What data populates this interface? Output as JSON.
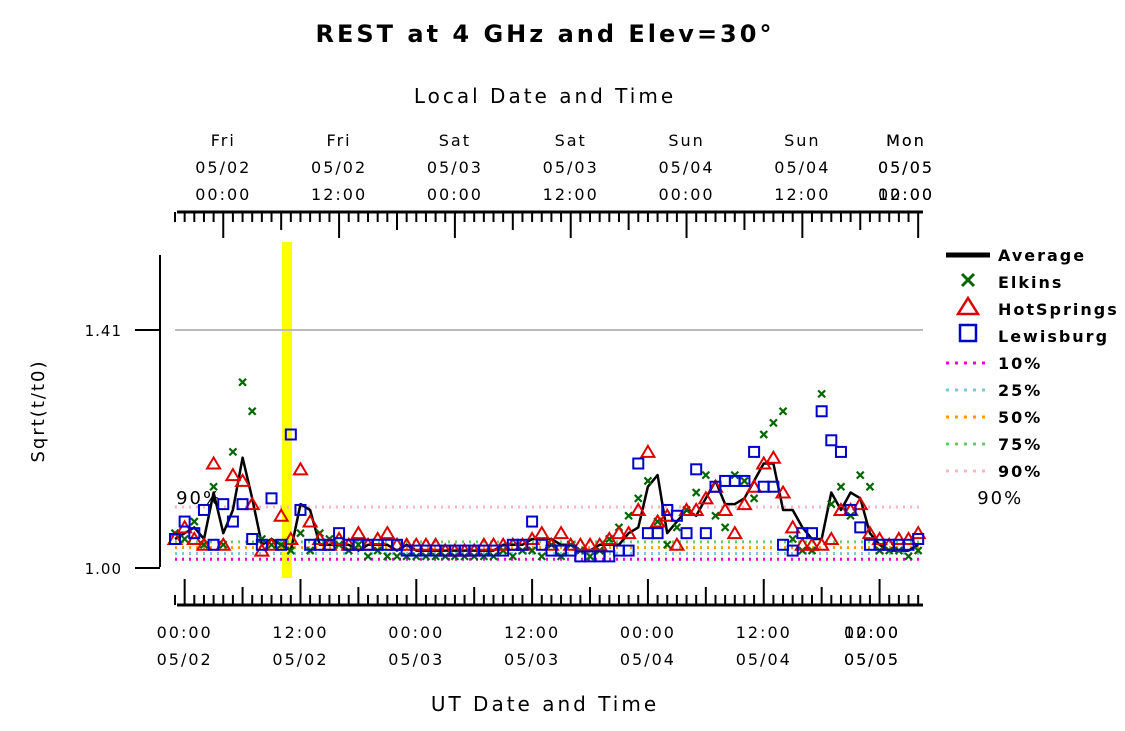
{
  "chart_data": {
    "type": "scatter",
    "title": "REST at 4 GHz and Elev=30°",
    "top_xlabel": "Local Date and Time",
    "xlabel": "UT Date and Time",
    "ylabel": "Sqrt(t/t0)",
    "x_unit": "hours since 05/02 00:00 UT",
    "xlim": [
      -1,
      76.5
    ],
    "ylim": [
      0.99,
      1.53
    ],
    "y_reference_line": 1.41,
    "y_ticks": [
      {
        "value": 1.0,
        "label": "1.00"
      },
      {
        "value": 1.41,
        "label": "1.41"
      }
    ],
    "bottom_ticks": [
      {
        "x": 0,
        "line1": "00:00",
        "line2": "05/02"
      },
      {
        "x": 12,
        "line1": "12:00",
        "line2": "05/02"
      },
      {
        "x": 24,
        "line1": "00:00",
        "line2": "05/03"
      },
      {
        "x": 36,
        "line1": "12:00",
        "line2": "05/03"
      },
      {
        "x": 48,
        "line1": "00:00",
        "line2": "05/04"
      },
      {
        "x": 60,
        "line1": "12:00",
        "line2": "05/04"
      },
      {
        "x": 72,
        "line1": "00:00",
        "line2": "05/05"
      },
      {
        "x": 84,
        "line1": "12:00",
        "line2": "05/05"
      }
    ],
    "top_ticks": [
      {
        "x": 4,
        "line1": "Fri",
        "line2": "05/02",
        "line3": "00:00"
      },
      {
        "x": 16,
        "line1": "Fri",
        "line2": "05/02",
        "line3": "12:00"
      },
      {
        "x": 28,
        "line1": "Sat",
        "line2": "05/03",
        "line3": "00:00"
      },
      {
        "x": 40,
        "line1": "Sat",
        "line2": "05/03",
        "line3": "12:00"
      },
      {
        "x": 52,
        "line1": "Sun",
        "line2": "05/04",
        "line3": "00:00"
      },
      {
        "x": 64,
        "line1": "Sun",
        "line2": "05/04",
        "line3": "12:00"
      },
      {
        "x": 76,
        "line1": "Mon",
        "line2": "05/05",
        "line3": "00:00"
      },
      {
        "x": 88,
        "line1": "Mon",
        "line2": "05/05",
        "line3": "12:00"
      }
    ],
    "highlight_band": {
      "x": 10.6,
      "color": "#ffff00"
    },
    "percentile_lines": [
      {
        "name": "10%",
        "value": 1.015,
        "color": "#e000e0"
      },
      {
        "name": "25%",
        "value": 1.025,
        "color": "#7cc8d8"
      },
      {
        "name": "50%",
        "value": 1.035,
        "color": "#ff9900"
      },
      {
        "name": "75%",
        "value": 1.045,
        "color": "#66cc66"
      },
      {
        "name": "90%",
        "value": 1.105,
        "color": "#ffb6c1"
      }
    ],
    "percentile_annotations": [
      {
        "text": "90%",
        "x": 1.5,
        "y": 1.11,
        "color": "#ffb6c1"
      },
      {
        "text": "90%",
        "x": 84.5,
        "y": 1.11,
        "color": "#ffb6c1"
      }
    ],
    "legend": [
      {
        "name": "Average",
        "marker": "line",
        "color": "#000000"
      },
      {
        "name": "Elkins",
        "marker": "x",
        "color": "#006600"
      },
      {
        "name": "HotSprings",
        "marker": "triangle",
        "color": "#dd0000"
      },
      {
        "name": "Lewisburg",
        "marker": "square",
        "color": "#0000cc"
      },
      {
        "name": "10%",
        "marker": "dots",
        "color": "#e000e0"
      },
      {
        "name": "25%",
        "marker": "dots",
        "color": "#7cc8d8"
      },
      {
        "name": "50%",
        "marker": "dots",
        "color": "#ff9900"
      },
      {
        "name": "75%",
        "marker": "dots",
        "color": "#66cc66"
      },
      {
        "name": "90%",
        "marker": "dots",
        "color": "#ffb6c1"
      }
    ],
    "series": [
      {
        "name": "Average",
        "color": "#000000",
        "marker": "line",
        "x": [
          -1,
          0,
          1,
          2,
          3,
          4,
          5,
          6,
          7,
          8,
          9,
          10,
          11,
          12,
          13,
          14,
          15,
          16,
          17,
          18,
          19,
          20,
          21,
          22,
          23,
          24,
          25,
          26,
          27,
          28,
          29,
          30,
          31,
          32,
          33,
          34,
          35,
          36,
          37,
          38,
          39,
          40,
          41,
          42,
          43,
          44,
          45,
          46,
          47,
          48,
          49,
          50,
          51,
          52,
          53,
          54,
          55,
          56,
          57,
          58,
          59,
          60,
          61,
          62,
          63,
          64,
          65,
          66,
          67,
          68,
          69,
          70,
          71,
          72,
          73,
          74,
          75,
          76
        ],
        "y": [
          1.05,
          1.06,
          1.07,
          1.05,
          1.13,
          1.06,
          1.1,
          1.19,
          1.12,
          1.04,
          1.05,
          1.04,
          1.03,
          1.11,
          1.1,
          1.04,
          1.04,
          1.04,
          1.04,
          1.03,
          1.04,
          1.04,
          1.04,
          1.03,
          1.04,
          1.03,
          1.03,
          1.03,
          1.03,
          1.03,
          1.03,
          1.03,
          1.03,
          1.03,
          1.04,
          1.04,
          1.04,
          1.05,
          1.05,
          1.05,
          1.04,
          1.04,
          1.03,
          1.03,
          1.04,
          1.04,
          1.04,
          1.06,
          1.07,
          1.14,
          1.16,
          1.06,
          1.08,
          1.1,
          1.09,
          1.12,
          1.15,
          1.11,
          1.11,
          1.12,
          1.15,
          1.18,
          1.18,
          1.1,
          1.1,
          1.07,
          1.05,
          1.05,
          1.13,
          1.1,
          1.13,
          1.12,
          1.06,
          1.04,
          1.03,
          1.03,
          1.03,
          1.04
        ]
      },
      {
        "name": "Elkins",
        "color": "#006600",
        "marker": "x",
        "x": [
          -1,
          0,
          1,
          2,
          3,
          4,
          5,
          6,
          7,
          8,
          9,
          10,
          11,
          12,
          13,
          14,
          15,
          16,
          17,
          18,
          19,
          20,
          21,
          22,
          23,
          24,
          25,
          26,
          27,
          28,
          29,
          30,
          31,
          32,
          33,
          34,
          35,
          36,
          37,
          38,
          39,
          40,
          41,
          42,
          43,
          44,
          45,
          46,
          47,
          48,
          49,
          50,
          51,
          52,
          53,
          54,
          55,
          56,
          57,
          58,
          59,
          60,
          61,
          62,
          63,
          64,
          65,
          66,
          67,
          68,
          69,
          70,
          71,
          72,
          73,
          74,
          75,
          76
        ],
        "y": [
          1.06,
          1.05,
          1.08,
          1.04,
          1.14,
          1.04,
          1.2,
          1.32,
          1.27,
          1.05,
          1.04,
          1.04,
          1.03,
          1.06,
          1.03,
          1.06,
          1.05,
          1.04,
          1.03,
          1.04,
          1.02,
          1.03,
          1.02,
          1.02,
          1.02,
          1.02,
          1.02,
          1.02,
          1.02,
          1.02,
          1.02,
          1.02,
          1.02,
          1.02,
          1.03,
          1.02,
          1.03,
          1.03,
          1.02,
          1.04,
          1.02,
          1.04,
          1.03,
          1.02,
          1.03,
          1.05,
          1.07,
          1.09,
          1.12,
          1.15,
          1.08,
          1.04,
          1.07,
          1.1,
          1.13,
          1.16,
          1.09,
          1.07,
          1.16,
          1.15,
          1.12,
          1.23,
          1.25,
          1.27,
          1.05,
          1.03,
          1.03,
          1.3,
          1.11,
          1.14,
          1.09,
          1.16,
          1.14,
          1.03,
          1.03,
          1.03,
          1.02,
          1.03
        ]
      },
      {
        "name": "HotSprings",
        "color": "#dd0000",
        "marker": "triangle",
        "x": [
          -1,
          0,
          1,
          2,
          3,
          4,
          5,
          6,
          7,
          8,
          9,
          10,
          11,
          12,
          13,
          14,
          15,
          16,
          17,
          18,
          19,
          20,
          21,
          22,
          23,
          24,
          25,
          26,
          27,
          28,
          29,
          30,
          31,
          32,
          33,
          34,
          35,
          36,
          37,
          38,
          39,
          40,
          41,
          42,
          43,
          44,
          45,
          46,
          47,
          48,
          49,
          50,
          51,
          52,
          53,
          54,
          55,
          56,
          57,
          58,
          59,
          60,
          61,
          62,
          63,
          64,
          65,
          66,
          67,
          68,
          69,
          70,
          71,
          72,
          73,
          74,
          75,
          76
        ],
        "y": [
          1.05,
          1.07,
          1.05,
          1.04,
          1.18,
          1.04,
          1.16,
          1.15,
          1.11,
          1.03,
          1.04,
          1.09,
          1.05,
          1.17,
          1.08,
          1.05,
          1.04,
          1.05,
          1.04,
          1.06,
          1.04,
          1.05,
          1.06,
          1.04,
          1.04,
          1.04,
          1.04,
          1.04,
          1.03,
          1.03,
          1.03,
          1.03,
          1.04,
          1.04,
          1.04,
          1.04,
          1.04,
          1.05,
          1.06,
          1.04,
          1.06,
          1.04,
          1.04,
          1.04,
          1.04,
          1.05,
          1.06,
          1.06,
          1.1,
          1.2,
          1.08,
          1.09,
          1.04,
          1.1,
          1.1,
          1.12,
          1.14,
          1.1,
          1.06,
          1.11,
          1.14,
          1.18,
          1.19,
          1.13,
          1.07,
          1.04,
          1.04,
          1.04,
          1.05,
          1.1,
          1.1,
          1.11,
          1.06,
          1.05,
          1.04,
          1.05,
          1.05,
          1.06
        ]
      },
      {
        "name": "Lewisburg",
        "color": "#0000cc",
        "marker": "square",
        "x": [
          -1,
          0,
          1,
          2,
          3,
          4,
          5,
          6,
          7,
          8,
          9,
          10,
          11,
          12,
          13,
          14,
          15,
          16,
          17,
          18,
          19,
          20,
          21,
          22,
          23,
          24,
          25,
          26,
          27,
          28,
          29,
          30,
          31,
          32,
          33,
          34,
          35,
          36,
          37,
          38,
          39,
          40,
          41,
          42,
          43,
          44,
          45,
          46,
          47,
          48,
          49,
          50,
          51,
          52,
          53,
          54,
          55,
          56,
          57,
          58,
          59,
          60,
          61,
          62,
          63,
          64,
          65,
          66,
          67,
          68,
          69,
          70,
          71,
          72,
          73,
          74,
          75,
          76
        ],
        "y": [
          1.05,
          1.08,
          1.06,
          1.1,
          1.04,
          1.11,
          1.08,
          1.11,
          1.05,
          1.04,
          1.12,
          1.04,
          1.23,
          1.1,
          1.04,
          1.04,
          1.04,
          1.06,
          1.04,
          1.04,
          1.04,
          1.04,
          1.04,
          1.04,
          1.03,
          1.03,
          1.03,
          1.03,
          1.03,
          1.03,
          1.03,
          1.03,
          1.03,
          1.03,
          1.03,
          1.04,
          1.04,
          1.08,
          1.04,
          1.03,
          1.03,
          1.03,
          1.02,
          1.02,
          1.02,
          1.02,
          1.03,
          1.03,
          1.18,
          1.06,
          1.06,
          1.1,
          1.09,
          1.06,
          1.17,
          1.06,
          1.14,
          1.15,
          1.15,
          1.15,
          1.2,
          1.14,
          1.14,
          1.04,
          1.03,
          1.06,
          1.06,
          1.27,
          1.22,
          1.2,
          1.1,
          1.07,
          1.04,
          1.04,
          1.04,
          1.04,
          1.04,
          1.05
        ]
      }
    ]
  }
}
